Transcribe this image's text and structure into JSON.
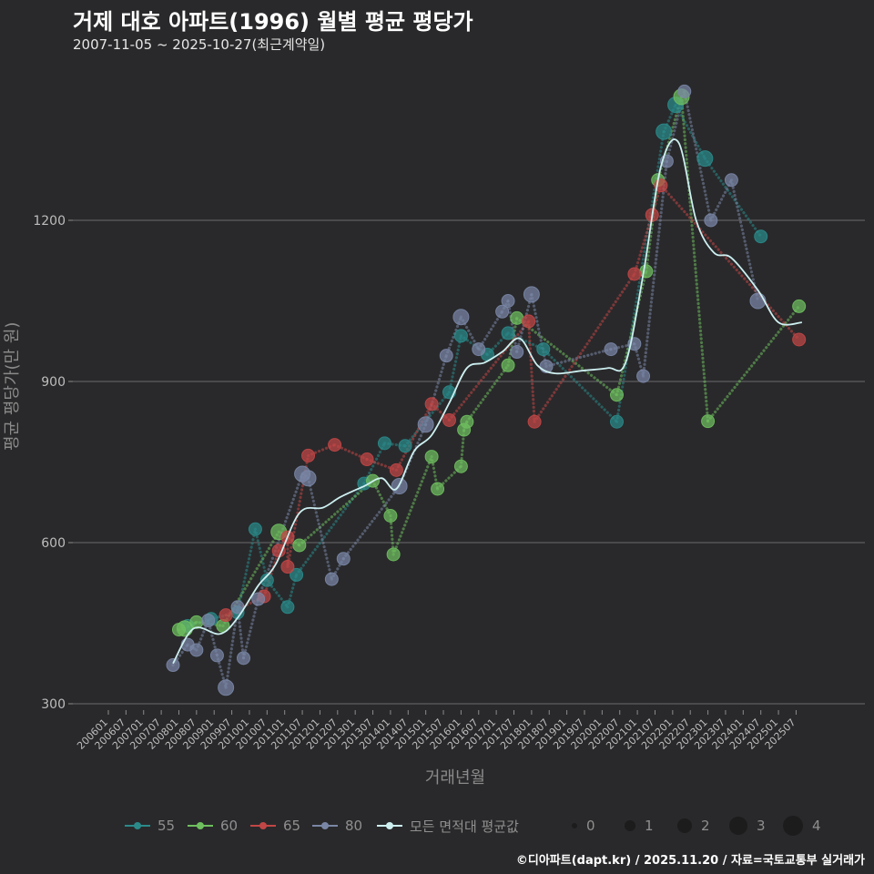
{
  "title": "거제 대호 아파트(1996) 월별 평균 평당가",
  "subtitle": "2007-11-05 ~ 2025-10-27(최근계약일)",
  "caption": "©디아파트(dapt.kr) / 2025.11.20 / 자료=국토교통부 실거래가",
  "chart_data": {
    "type": "scatter",
    "title": "거제 대호 아파트(1996) 월별 평균 평당가",
    "xlabel": "거래년월",
    "ylabel": "평균 평당가(만 원)",
    "xlim": [
      "2006-01",
      "2025-12"
    ],
    "ylim": [
      280,
      1500
    ],
    "yticks": [
      300,
      600,
      900,
      1200
    ],
    "xticks": [
      "200601",
      "200607",
      "200701",
      "200707",
      "200801",
      "200807",
      "200901",
      "200907",
      "201001",
      "201007",
      "201101",
      "201107",
      "201201",
      "201207",
      "201301",
      "201307",
      "201401",
      "201407",
      "201501",
      "201507",
      "201601",
      "201607",
      "201701",
      "201707",
      "201801",
      "201807",
      "201901",
      "201907",
      "202001",
      "202007",
      "202101",
      "202107",
      "202201",
      "202207",
      "202301",
      "202307",
      "202401",
      "202407",
      "202501",
      "202507"
    ],
    "series": [
      {
        "name": "55",
        "color": "#2a8a8a",
        "points": [
          {
            "x": "2008-04",
            "y": 445,
            "n": 1
          },
          {
            "x": "2008-12",
            "y": 458,
            "n": 1
          },
          {
            "x": "2009-09",
            "y": 470,
            "n": 1
          },
          {
            "x": "2010-03",
            "y": 625,
            "n": 1
          },
          {
            "x": "2010-07",
            "y": 530,
            "n": 1
          },
          {
            "x": "2011-02",
            "y": 480,
            "n": 1
          },
          {
            "x": "2011-05",
            "y": 540,
            "n": 1
          },
          {
            "x": "2013-04",
            "y": 710,
            "n": 1
          },
          {
            "x": "2013-11",
            "y": 785,
            "n": 1
          },
          {
            "x": "2014-06",
            "y": 780,
            "n": 1
          },
          {
            "x": "2015-09",
            "y": 880,
            "n": 1
          },
          {
            "x": "2016-01",
            "y": 985,
            "n": 1
          },
          {
            "x": "2016-10",
            "y": 950,
            "n": 1
          },
          {
            "x": "2017-05",
            "y": 990,
            "n": 1
          },
          {
            "x": "2018-05",
            "y": 960,
            "n": 1
          },
          {
            "x": "2020-06",
            "y": 825,
            "n": 1
          },
          {
            "x": "2021-10",
            "y": 1365,
            "n": 2
          },
          {
            "x": "2022-02",
            "y": 1415,
            "n": 2
          },
          {
            "x": "2022-12",
            "y": 1315,
            "n": 2
          },
          {
            "x": "2024-07",
            "y": 1170,
            "n": 1
          }
        ]
      },
      {
        "name": "60",
        "color": "#6fbf5f",
        "points": [
          {
            "x": "2008-01",
            "y": 438,
            "n": 1
          },
          {
            "x": "2008-03",
            "y": 440,
            "n": 2
          },
          {
            "x": "2008-07",
            "y": 452,
            "n": 1
          },
          {
            "x": "2009-04",
            "y": 445,
            "n": 1
          },
          {
            "x": "2010-11",
            "y": 620,
            "n": 2
          },
          {
            "x": "2011-06",
            "y": 595,
            "n": 1
          },
          {
            "x": "2013-07",
            "y": 715,
            "n": 1
          },
          {
            "x": "2014-01",
            "y": 650,
            "n": 1
          },
          {
            "x": "2014-02",
            "y": 578,
            "n": 1
          },
          {
            "x": "2015-03",
            "y": 760,
            "n": 1
          },
          {
            "x": "2015-05",
            "y": 700,
            "n": 1
          },
          {
            "x": "2016-01",
            "y": 742,
            "n": 1
          },
          {
            "x": "2016-02",
            "y": 810,
            "n": 1
          },
          {
            "x": "2016-03",
            "y": 825,
            "n": 1
          },
          {
            "x": "2017-05",
            "y": 930,
            "n": 1
          },
          {
            "x": "2017-08",
            "y": 1018,
            "n": 1
          },
          {
            "x": "2020-06",
            "y": 875,
            "n": 1
          },
          {
            "x": "2021-04",
            "y": 1105,
            "n": 1
          },
          {
            "x": "2021-08",
            "y": 1275,
            "n": 1
          },
          {
            "x": "2022-04",
            "y": 1430,
            "n": 2
          },
          {
            "x": "2023-01",
            "y": 826,
            "n": 1
          },
          {
            "x": "2025-08",
            "y": 1040,
            "n": 1
          }
        ]
      },
      {
        "name": "65",
        "color": "#c24646",
        "points": [
          {
            "x": "2009-05",
            "y": 465,
            "n": 1
          },
          {
            "x": "2010-06",
            "y": 500,
            "n": 1
          },
          {
            "x": "2010-11",
            "y": 585,
            "n": 1
          },
          {
            "x": "2011-02",
            "y": 610,
            "n": 1
          },
          {
            "x": "2011-02",
            "y": 555,
            "n": 1
          },
          {
            "x": "2011-09",
            "y": 762,
            "n": 1
          },
          {
            "x": "2012-06",
            "y": 782,
            "n": 1
          },
          {
            "x": "2013-05",
            "y": 755,
            "n": 1
          },
          {
            "x": "2014-03",
            "y": 735,
            "n": 1
          },
          {
            "x": "2015-03",
            "y": 858,
            "n": 1
          },
          {
            "x": "2015-09",
            "y": 828,
            "n": 1
          },
          {
            "x": "2017-12",
            "y": 1012,
            "n": 1
          },
          {
            "x": "2018-02",
            "y": 825,
            "n": 1
          },
          {
            "x": "2020-12",
            "y": 1100,
            "n": 1
          },
          {
            "x": "2021-06",
            "y": 1210,
            "n": 1
          },
          {
            "x": "2021-09",
            "y": 1265,
            "n": 1
          },
          {
            "x": "2025-08",
            "y": 978,
            "n": 1
          }
        ]
      },
      {
        "name": "80",
        "color": "#7a86a6",
        "points": [
          {
            "x": "2007-11",
            "y": 372,
            "n": 1
          },
          {
            "x": "2008-04",
            "y": 410,
            "n": 1
          },
          {
            "x": "2008-07",
            "y": 400,
            "n": 1
          },
          {
            "x": "2008-11",
            "y": 455,
            "n": 1
          },
          {
            "x": "2009-02",
            "y": 390,
            "n": 1
          },
          {
            "x": "2009-05",
            "y": 330,
            "n": 2
          },
          {
            "x": "2009-09",
            "y": 480,
            "n": 1
          },
          {
            "x": "2009-11",
            "y": 385,
            "n": 1
          },
          {
            "x": "2010-04",
            "y": 495,
            "n": 1
          },
          {
            "x": "2011-07",
            "y": 728,
            "n": 2
          },
          {
            "x": "2011-09",
            "y": 720,
            "n": 2
          },
          {
            "x": "2012-05",
            "y": 532,
            "n": 1
          },
          {
            "x": "2012-09",
            "y": 570,
            "n": 1
          },
          {
            "x": "2014-04",
            "y": 705,
            "n": 2
          },
          {
            "x": "2015-01",
            "y": 820,
            "n": 2
          },
          {
            "x": "2015-08",
            "y": 948,
            "n": 1
          },
          {
            "x": "2016-01",
            "y": 1020,
            "n": 2
          },
          {
            "x": "2016-07",
            "y": 960,
            "n": 1
          },
          {
            "x": "2017-03",
            "y": 1030,
            "n": 1
          },
          {
            "x": "2017-05",
            "y": 1050,
            "n": 1
          },
          {
            "x": "2017-08",
            "y": 955,
            "n": 1
          },
          {
            "x": "2018-01",
            "y": 1062,
            "n": 2
          },
          {
            "x": "2018-06",
            "y": 928,
            "n": 1
          },
          {
            "x": "2020-04",
            "y": 960,
            "n": 1
          },
          {
            "x": "2020-12",
            "y": 970,
            "n": 1
          },
          {
            "x": "2021-03",
            "y": 910,
            "n": 1
          },
          {
            "x": "2021-11",
            "y": 1310,
            "n": 1
          },
          {
            "x": "2022-05",
            "y": 1440,
            "n": 1
          },
          {
            "x": "2023-02",
            "y": 1200,
            "n": 1
          },
          {
            "x": "2023-09",
            "y": 1275,
            "n": 1
          },
          {
            "x": "2024-06",
            "y": 1050,
            "n": 2
          }
        ]
      }
    ],
    "average": {
      "name": "모든 면적대 평균값",
      "color": "#cdeff0",
      "points": [
        {
          "x": "2007-11",
          "y": 375
        },
        {
          "x": "2008-06",
          "y": 440
        },
        {
          "x": "2009-03",
          "y": 430
        },
        {
          "x": "2009-09",
          "y": 460
        },
        {
          "x": "2010-04",
          "y": 520
        },
        {
          "x": "2010-10",
          "y": 560
        },
        {
          "x": "2011-06",
          "y": 655
        },
        {
          "x": "2012-02",
          "y": 665
        },
        {
          "x": "2012-08",
          "y": 685
        },
        {
          "x": "2013-04",
          "y": 705
        },
        {
          "x": "2013-10",
          "y": 720
        },
        {
          "x": "2014-03",
          "y": 700
        },
        {
          "x": "2014-09",
          "y": 770
        },
        {
          "x": "2015-03",
          "y": 800
        },
        {
          "x": "2015-09",
          "y": 860
        },
        {
          "x": "2016-03",
          "y": 925
        },
        {
          "x": "2016-09",
          "y": 935
        },
        {
          "x": "2017-03",
          "y": 955
        },
        {
          "x": "2017-09",
          "y": 980
        },
        {
          "x": "2018-03",
          "y": 930
        },
        {
          "x": "2018-09",
          "y": 915
        },
        {
          "x": "2019-06",
          "y": 920
        },
        {
          "x": "2020-03",
          "y": 925
        },
        {
          "x": "2020-09",
          "y": 935
        },
        {
          "x": "2021-03",
          "y": 1100
        },
        {
          "x": "2021-09",
          "y": 1300
        },
        {
          "x": "2022-03",
          "y": 1345
        },
        {
          "x": "2022-09",
          "y": 1200
        },
        {
          "x": "2023-03",
          "y": 1140
        },
        {
          "x": "2023-09",
          "y": 1130
        },
        {
          "x": "2024-06",
          "y": 1070
        },
        {
          "x": "2025-01",
          "y": 1010
        },
        {
          "x": "2025-09",
          "y": 1010
        }
      ]
    },
    "size_legend": [
      "0",
      "1",
      "2",
      "3",
      "4"
    ],
    "legend_position": "bottom"
  }
}
